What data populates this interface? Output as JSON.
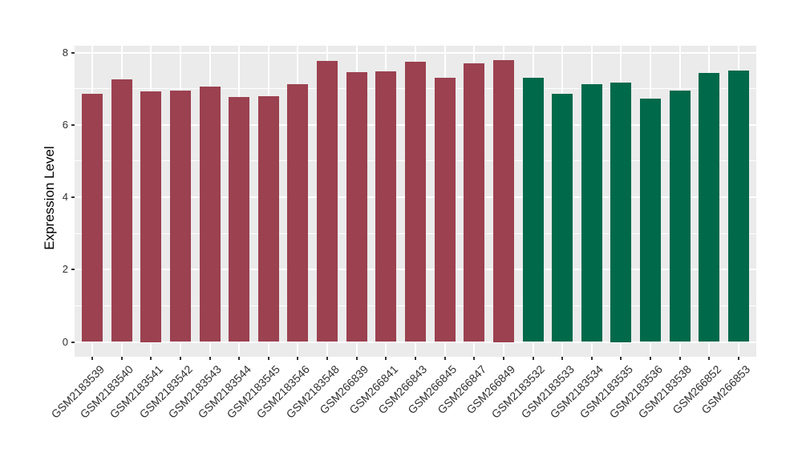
{
  "figure": {
    "background": "#FFFFFF",
    "title": ""
  },
  "chart_data": {
    "type": "bar",
    "title": "",
    "xlabel": "",
    "ylabel": "Expression Level",
    "ylim": [
      0,
      8
    ],
    "yticks": [
      0,
      2,
      4,
      6,
      8
    ],
    "yticks_minor": [
      1,
      3,
      5,
      7
    ],
    "grid": "major and minor white gridlines on gray panel",
    "legend_position": "none",
    "panel_background": "#EBEBEB",
    "gridline_color": "#FFFFFF",
    "tick_color": "#333333",
    "axis_text_color": "#303030",
    "categories": [
      "GSM2183539",
      "GSM2183540",
      "GSM2183541",
      "GSM2183542",
      "GSM2183543",
      "GSM2183544",
      "GSM2183545",
      "GSM2183546",
      "GSM2183548",
      "GSM266839",
      "GSM266841",
      "GSM266843",
      "GSM266845",
      "GSM266847",
      "GSM266849",
      "GSM2183532",
      "GSM2183533",
      "GSM2183534",
      "GSM2183535",
      "GSM2183536",
      "GSM2183538",
      "GSM266852",
      "GSM266853"
    ],
    "values": [
      6.85,
      7.27,
      6.92,
      6.95,
      7.07,
      6.78,
      6.8,
      7.13,
      7.77,
      7.46,
      7.49,
      7.74,
      7.31,
      7.71,
      7.8,
      7.31,
      6.87,
      7.12,
      7.16,
      6.73,
      6.95,
      7.43,
      7.5
    ],
    "groups": [
      "maroon",
      "maroon",
      "maroon",
      "maroon",
      "maroon",
      "maroon",
      "maroon",
      "maroon",
      "maroon",
      "maroon",
      "maroon",
      "maroon",
      "maroon",
      "maroon",
      "maroon",
      "green",
      "green",
      "green",
      "green",
      "green",
      "green",
      "green",
      "green"
    ],
    "group_colors": {
      "maroon": "#9B4150",
      "green": "#00694A"
    }
  }
}
